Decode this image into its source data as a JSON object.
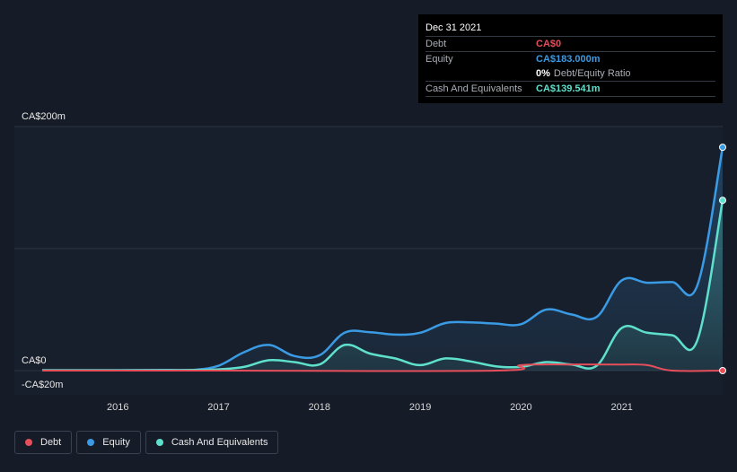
{
  "tooltip": {
    "date": "Dec 31 2021",
    "rows": [
      {
        "label": "Debt",
        "value": "CA$0",
        "color": "#e64e5b"
      },
      {
        "label": "Equity",
        "value": "CA$183.000m",
        "color": "#3a9be4"
      },
      {
        "ratio_pct": "0%",
        "ratio_label": "Debt/Equity Ratio"
      },
      {
        "label": "Cash And Equivalents",
        "value": "CA$139.541m",
        "color": "#5ee0cc"
      }
    ]
  },
  "legend": [
    {
      "label": "Debt",
      "color": "#e64e5b"
    },
    {
      "label": "Equity",
      "color": "#3a9be4"
    },
    {
      "label": "Cash And Equivalents",
      "color": "#5ee0cc"
    }
  ],
  "chart_data": {
    "type": "area",
    "title": "",
    "xlabel": "",
    "ylabel": "",
    "ylim": [
      -20,
      200
    ],
    "xlim": [
      2015.25,
      2022.0
    ],
    "y_tick_labels": [
      {
        "value": 200,
        "label": "CA$200m"
      },
      {
        "value": 0,
        "label": "CA$0"
      },
      {
        "value": -20,
        "label": "-CA$20m"
      }
    ],
    "x_tick_labels": [
      {
        "value": 2016,
        "label": "2016"
      },
      {
        "value": 2017,
        "label": "2017"
      },
      {
        "value": 2018,
        "label": "2018"
      },
      {
        "value": 2019,
        "label": "2019"
      },
      {
        "value": 2020,
        "label": "2020"
      },
      {
        "value": 2021,
        "label": "2021"
      }
    ],
    "gridlines": [
      200,
      100,
      0
    ],
    "series": [
      {
        "name": "Equity",
        "color": "#3a9be4",
        "points": [
          [
            2015.25,
            0.3
          ],
          [
            2016.0,
            0.3
          ],
          [
            2016.5,
            0.5
          ],
          [
            2016.75,
            0.6
          ],
          [
            2017.0,
            4
          ],
          [
            2017.25,
            15
          ],
          [
            2017.5,
            21
          ],
          [
            2017.75,
            12
          ],
          [
            2018.0,
            12.5
          ],
          [
            2018.25,
            31
          ],
          [
            2018.5,
            31.5
          ],
          [
            2018.75,
            29.5
          ],
          [
            2019.0,
            31
          ],
          [
            2019.25,
            39
          ],
          [
            2019.5,
            39.5
          ],
          [
            2019.75,
            38.5
          ],
          [
            2020.0,
            38
          ],
          [
            2020.25,
            50
          ],
          [
            2020.5,
            46
          ],
          [
            2020.75,
            44
          ],
          [
            2021.0,
            74
          ],
          [
            2021.25,
            72
          ],
          [
            2021.5,
            72.5
          ],
          [
            2021.75,
            70
          ],
          [
            2022.0,
            183
          ]
        ]
      },
      {
        "name": "Cash And Equivalents",
        "color": "#5ee0cc",
        "points": [
          [
            2015.25,
            0.3
          ],
          [
            2016.0,
            0.3
          ],
          [
            2016.5,
            0.4
          ],
          [
            2016.75,
            0.5
          ],
          [
            2017.0,
            1
          ],
          [
            2017.25,
            3
          ],
          [
            2017.5,
            8.5
          ],
          [
            2017.75,
            7
          ],
          [
            2018.0,
            5
          ],
          [
            2018.25,
            21
          ],
          [
            2018.5,
            14
          ],
          [
            2018.75,
            10
          ],
          [
            2019.0,
            4.5
          ],
          [
            2019.25,
            10
          ],
          [
            2019.5,
            7.5
          ],
          [
            2019.75,
            3.5
          ],
          [
            2020.0,
            3
          ],
          [
            2020.25,
            7
          ],
          [
            2020.5,
            5
          ],
          [
            2020.75,
            4
          ],
          [
            2021.0,
            35
          ],
          [
            2021.25,
            31
          ],
          [
            2021.5,
            29
          ],
          [
            2021.75,
            25
          ],
          [
            2022.0,
            139.541
          ]
        ]
      },
      {
        "name": "Debt",
        "color": "#e64e5b",
        "points": [
          [
            2015.25,
            0
          ],
          [
            2017.0,
            0
          ],
          [
            2019.75,
            0
          ],
          [
            2020.0,
            4.5
          ],
          [
            2020.5,
            5
          ],
          [
            2021.0,
            5
          ],
          [
            2021.25,
            4.5
          ],
          [
            2021.5,
            0
          ],
          [
            2022.0,
            0
          ]
        ]
      }
    ]
  }
}
